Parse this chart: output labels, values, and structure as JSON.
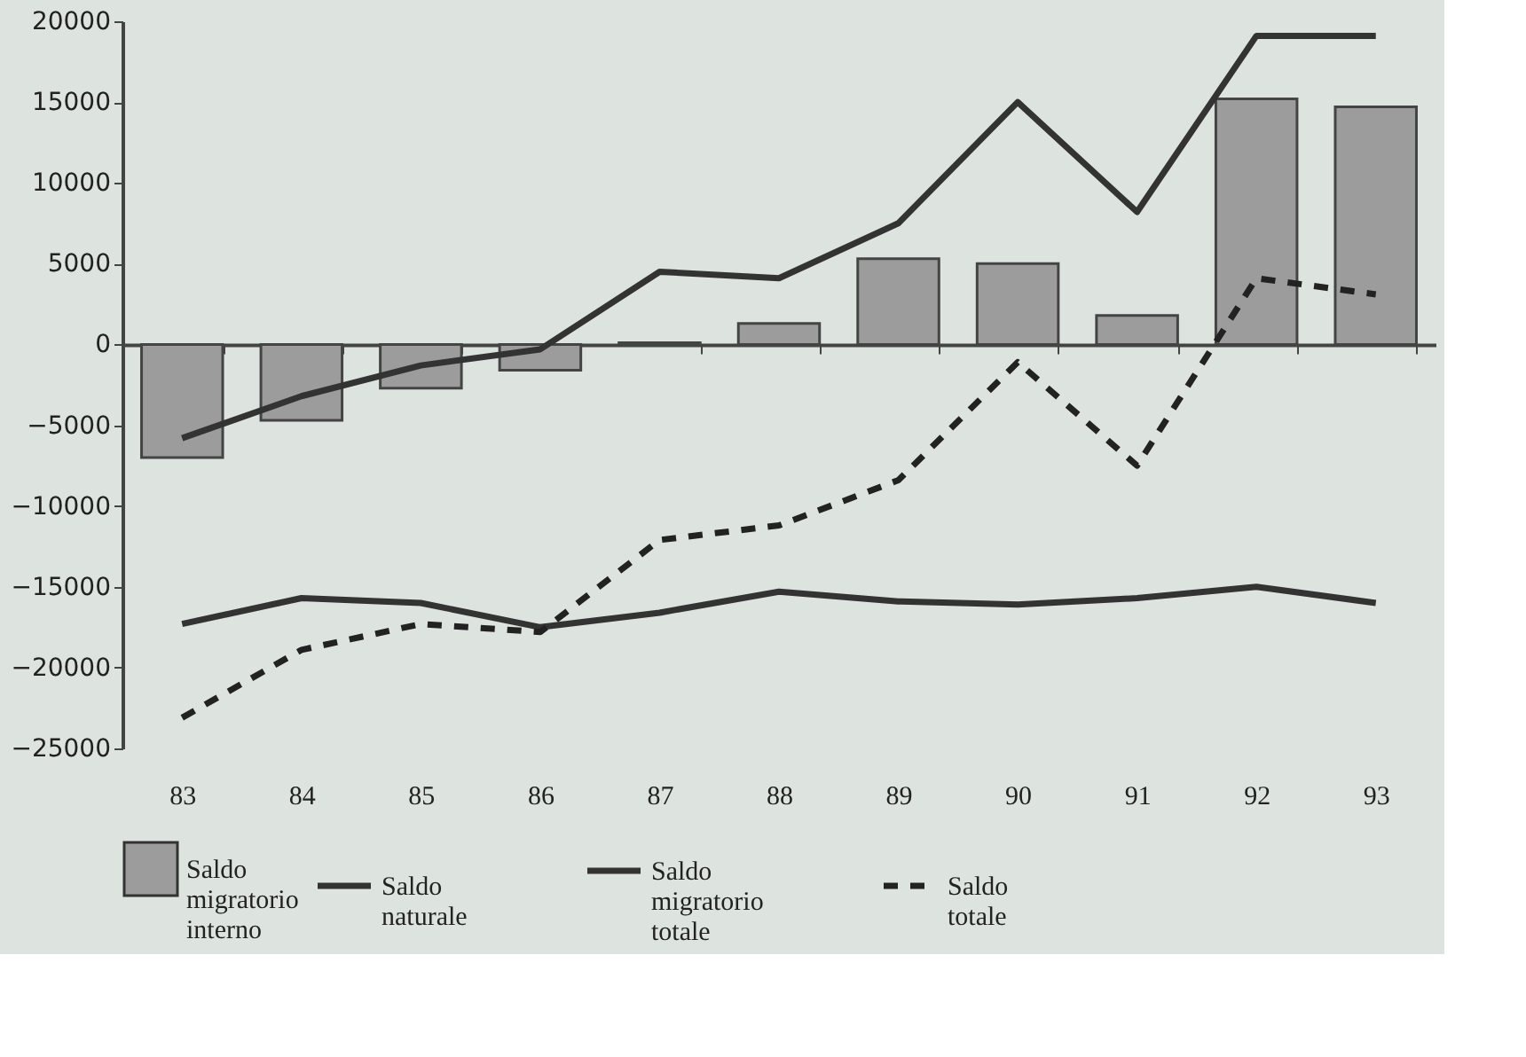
{
  "chart_data": {
    "type": "bar",
    "categories": [
      "83",
      "84",
      "85",
      "86",
      "87",
      "88",
      "89",
      "90",
      "91",
      "92",
      "93"
    ],
    "series": [
      {
        "name": "Saldo migratorio interno",
        "color": "#9c9c9c",
        "values": [
          -7000,
          -4700,
          -2700,
          -1600,
          100,
          1300,
          5300,
          5000,
          1800,
          15200,
          14700
        ]
      },
      {
        "name": "Saldo naturale",
        "type": "line",
        "color": "#333333",
        "line_style": "solid",
        "values": [
          -17300,
          -15700,
          -16000,
          -17500,
          -16600,
          -15300,
          -15900,
          -16100,
          -15700,
          -15000,
          -16000
        ]
      },
      {
        "name": "Saldo migratorio totale",
        "type": "line",
        "color": "#333333",
        "line_style": "solid",
        "values": [
          -5800,
          -3200,
          -1300,
          -300,
          4500,
          4100,
          7500,
          15000,
          8200,
          19100,
          19100
        ]
      },
      {
        "name": "Saldo totale",
        "type": "line",
        "color": "#222222",
        "line_style": "dashed",
        "values": [
          -23100,
          -18900,
          -17300,
          -17800,
          -12100,
          -11200,
          -8400,
          -1100,
          -7500,
          4100,
          3100
        ]
      }
    ],
    "ylim": [
      -25000,
      20000
    ],
    "yticks": [
      -25000,
      -20000,
      -15000,
      -10000,
      -5000,
      0,
      5000,
      10000,
      15000,
      20000
    ],
    "legend": "bottom",
    "marker": "none"
  }
}
